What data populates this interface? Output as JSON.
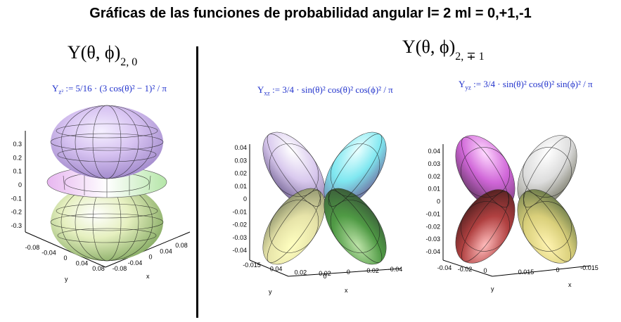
{
  "title": "Gráficas de las funciones de probabilidad angular l= 2 ml = 0,+1,-1",
  "left": {
    "ylabel_main": "Y(θ, ϕ)",
    "ylabel_sub": "2, 0",
    "formula_name": "Y",
    "formula_sub": "z²",
    "formula_text": ":= 5/16 · (3 cos(θ)² − 1)² / π",
    "plot": {
      "z_ticks": [
        "0.3",
        "0.2",
        "0.1",
        "0",
        "-0.1",
        "-0.2",
        "-0.3"
      ],
      "y_ticks": [
        "-0.08",
        "-0.04",
        "0",
        "0.04",
        "0.08"
      ],
      "x_ticks": [
        "-0.08",
        "-0.04",
        "0",
        "0.04",
        "0.08"
      ],
      "y_label": "y",
      "x_label": "x"
    }
  },
  "right_header": {
    "ylabel_main": "Y(θ, ϕ)",
    "ylabel_sub": "2, ∓ 1"
  },
  "middle": {
    "formula_name": "Y",
    "formula_sub": "xz",
    "formula_text": ":= 3/4 · sin(θ)² cos(θ)² cos(ϕ)² / π",
    "plot": {
      "z_ticks": [
        "0.04",
        "0.03",
        "0.02",
        "0.01",
        "0",
        "-0.01",
        "-0.02",
        "-0.03",
        "-0.04"
      ],
      "y_ticks": [
        "-0.015",
        "0.04",
        "0.02",
        "0"
      ],
      "x_ticks": [
        "0.02",
        "0",
        "-0.02",
        "-0.04"
      ],
      "y_label": "y",
      "x_label": "x"
    }
  },
  "right": {
    "formula_name": "Y",
    "formula_sub": "yz",
    "formula_text": ":= 3/4 · sin(θ)² cos(θ)² sin(ϕ)² / π",
    "plot": {
      "z_ticks": [
        "0.04",
        "0.03",
        "0.02",
        "0.01",
        "0",
        "-0.01",
        "-0.02",
        "-0.03",
        "-0.04"
      ],
      "y_ticks": [
        "-0.04",
        "-0.02",
        "0"
      ],
      "x_ticks": [
        "0.015",
        "0",
        "-0.015"
      ],
      "y_label": "y",
      "x_label": "x"
    }
  }
}
